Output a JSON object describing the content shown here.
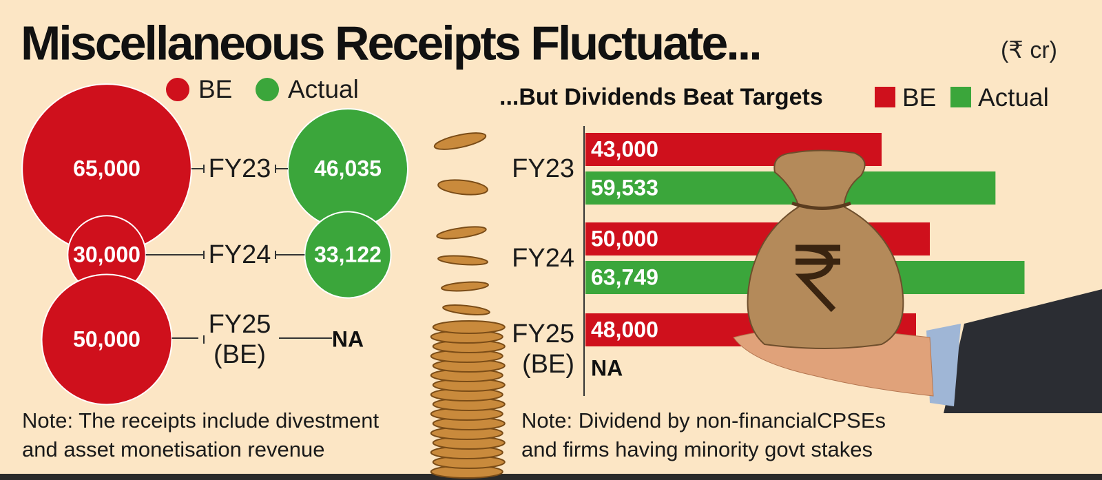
{
  "title": "Miscellaneous Receipts Fluctuate...",
  "unit": "(₹ cr)",
  "chart_data": [
    {
      "type": "bubble",
      "categories": [
        "FY23",
        "FY24",
        "FY25\n(BE)"
      ],
      "series": [
        {
          "name": "BE",
          "color": "#cf101c",
          "values": [
            65000,
            30000,
            50000
          ],
          "value_labels": [
            "65,000",
            "30,000",
            "50,000"
          ]
        },
        {
          "name": "Actual",
          "color": "#3ba63b",
          "values": [
            46035,
            33122,
            null
          ],
          "value_labels": [
            "46,035",
            "33,122",
            "NA"
          ]
        }
      ],
      "note": "Note: The receipts include divestment\nand asset monetisation revenue"
    },
    {
      "type": "bar",
      "title": "...But Dividends Beat Targets",
      "categories": [
        "FY23",
        "FY24",
        "FY25\n(BE)"
      ],
      "series": [
        {
          "name": "BE",
          "color": "#cf101c",
          "values": [
            43000,
            50000,
            48000
          ],
          "value_labels": [
            "43,000",
            "50,000",
            "48,000"
          ]
        },
        {
          "name": "Actual",
          "color": "#3ba63b",
          "values": [
            59533,
            63749,
            null
          ],
          "value_labels": [
            "59,533",
            "63,749",
            "NA"
          ]
        }
      ],
      "note": "Note: Dividend by non-financialCPSEs\nand firms having minority govt stakes"
    }
  ]
}
